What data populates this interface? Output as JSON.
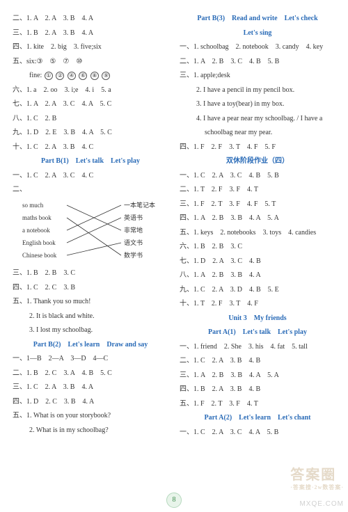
{
  "colors": {
    "text": "#333333",
    "blue": "#2a6bb7",
    "page_bg": "#e8f4ea",
    "page_border": "#b5d8bd",
    "page_text": "#3a8a4a",
    "line": "#333333"
  },
  "page_number": "8",
  "watermark_main": "答案圈",
  "watermark_sub": "·答案搜·2w数答案·",
  "watermark_url": "MXQE.COM",
  "left": {
    "l1": "二、1. A　2. A　3. B　4. A",
    "l2": "三、1. B　2. A　3. B　4. A",
    "l3": "四、1. kite　2. big　3. five;six",
    "l4": "五、six:③　⑤　⑦　⑩",
    "l5_prefix": "fine:",
    "c1": "①",
    "c2": "②",
    "c3": "④",
    "c4": "⑥",
    "c5": "⑧",
    "c6": "⑨",
    "l6": "六、1. a　2. oo　3. i;e　4. i　5. a",
    "l7": "七、1. A　2. A　3. C　4. A　5. C",
    "l8": "八、1. C　2. B",
    "l9": "九、1. D　2. E　3. B　4. A　5. C",
    "l10": "十、1. C　2. A　3. B　4. C",
    "h1": "Part B(1)　Let's talk　Let's play",
    "l11": "一、1. C　2. A　3. C　4. C",
    "l12": "二、",
    "ml": [
      "so much",
      "maths book",
      "a notebook",
      "English book",
      "Chinese book"
    ],
    "mr": [
      "一本笔记本",
      "英语书",
      "非常地",
      "语文书",
      "数学书"
    ],
    "l13": "三、1. B　2. B　3. C",
    "l14": "四、1. C　2. C　3. B",
    "l15": "五、1. Thank you so much!",
    "l16": "2. It is black and white.",
    "l17": "3. I lost my schoolbag.",
    "h2": "Part B(2)　Let's learn　Draw and say",
    "l18": "一、1—B　2—A　3—D　4—C",
    "l19": "二、1. B　2. C　3. A　4. B　5. C",
    "l20": "三、1. C　2. A　3. B　4. A",
    "l21": "四、1. D　2. C　3. B　4. A",
    "l22": "五、1. What is on your storybook?",
    "l23": "2. What is in my schoolbag?"
  },
  "right": {
    "h1a": "Part B(3)　Read and write　Let's check",
    "h1b": "Let's sing",
    "r1": "一、1. schoolbag　2. notebook　3. candy　4. key",
    "r2": "二、1. A　2. B　3. C　4. B　5. B",
    "r3": "三、1. apple;desk",
    "r4": "2. I have a pencil in my pencil box.",
    "r5": "3. I have a toy(bear) in my box.",
    "r6": "4. I have a pear near my schoolbag. / I have a",
    "r6b": "schoolbag near my pear.",
    "r7": "四、1. F　2. F　3. T　4. F　5. F",
    "h2": "双休阶段作业（四）",
    "r8": "一、1. C　2. A　3. C　4. B　5. B",
    "r9": "二、1. T　2. F　3. F　4. T",
    "r10": "三、1. F　2. T　3. F　4. F　5. T",
    "r11": "四、1. A　2. B　3. B　4. A　5. A",
    "r12": "五、1. keys　2. notebooks　3. toys　4. candies",
    "r13": "六、1. B　2. B　3. C",
    "r14": "七、1. D　2. A　3. C　4. B",
    "r15": "八、1. A　2. B　3. B　4. A",
    "r16": "九、1. C　2. A　3. D　4. B　5. E",
    "r17": "十、1. T　2. F　3. T　4. F",
    "h3": "Unit 3　My friends",
    "h4": "Part A(1)　Let's talk　Let's play",
    "r18": "一、1. friend　2. She　3. his　4. fat　5. tall",
    "r19": "二、1. C　2. A　3. B　4. B",
    "r20": "三、1. A　2. B　3. B　4. A　5. A",
    "r21": "四、1. B　2. A　3. B　4. B",
    "r22": "五、1. F　2. T　3. F　4. T",
    "h5": "Part A(2)　Let's learn　Let's chant",
    "r23": "一、1. C　2. A　3. C　4. A　5. B"
  },
  "matching_lines": [
    {
      "from": 0,
      "to": 2
    },
    {
      "from": 1,
      "to": 4
    },
    {
      "from": 2,
      "to": 0
    },
    {
      "from": 3,
      "to": 1
    },
    {
      "from": 4,
      "to": 3
    }
  ]
}
